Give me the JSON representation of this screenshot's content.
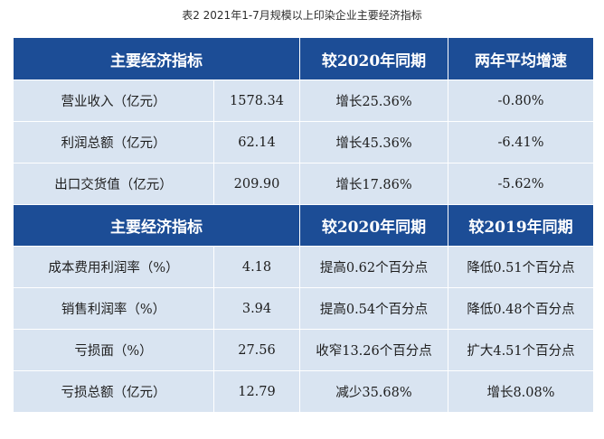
{
  "caption": "表2  2021年1-7月规模以上印染企业主要经济指标",
  "colors": {
    "header_bg": "#1c4d96",
    "row_bg": "#d9e4f1"
  },
  "section1": {
    "header": [
      "主要经济指标",
      "较2020年同期",
      "两年平均增速"
    ],
    "rows": [
      {
        "indicator": "营业收入（亿元）",
        "value": "1578.34",
        "vs_2020": "增长25.36%",
        "two_year": "-0.80%"
      },
      {
        "indicator": "利润总额（亿元）",
        "value": "62.14",
        "vs_2020": "增长45.36%",
        "two_year": "-6.41%"
      },
      {
        "indicator": "出口交货值（亿元）",
        "value": "209.90",
        "vs_2020": "增长17.86%",
        "two_year": "-5.62%"
      }
    ]
  },
  "section2": {
    "header": [
      "主要经济指标",
      "较2020年同期",
      "较2019年同期"
    ],
    "rows": [
      {
        "indicator": "成本费用利润率（%）",
        "value": "4.18",
        "vs_2020": "提高0.62个百分点",
        "vs_2019": "降低0.51个百分点"
      },
      {
        "indicator": "销售利润率（%）",
        "value": "3.94",
        "vs_2020": "提高0.54个百分点",
        "vs_2019": "降低0.48个百分点"
      },
      {
        "indicator": "亏损面（%）",
        "value": "27.56",
        "vs_2020": "收窄13.26个百分点",
        "vs_2019": "扩大4.51个百分点"
      },
      {
        "indicator": "亏损总额（亿元）",
        "value": "12.79",
        "vs_2020": "减少35.68%",
        "vs_2019": "增长8.08%"
      }
    ]
  }
}
